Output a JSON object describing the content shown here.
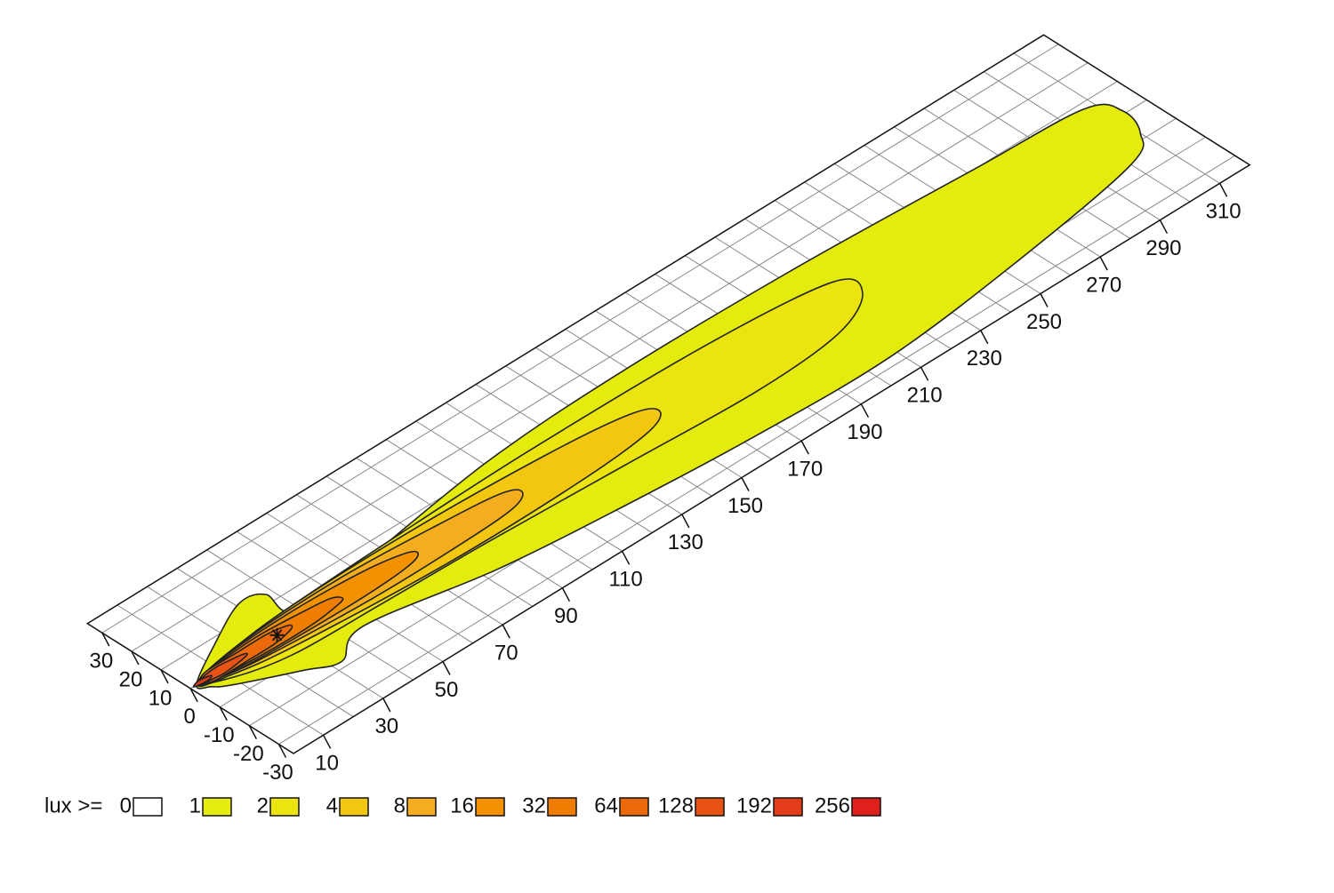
{
  "chart_data": {
    "type": "contour",
    "xlim": [
      0,
      320
    ],
    "ylim": [
      -35,
      35
    ],
    "xticks": [
      10,
      30,
      50,
      70,
      90,
      110,
      130,
      150,
      170,
      190,
      210,
      230,
      250,
      270,
      290,
      310
    ],
    "yticks": [
      30,
      20,
      10,
      0,
      -10,
      -20,
      -30
    ],
    "xgrid": [
      10,
      20,
      30,
      40,
      50,
      60,
      70,
      80,
      90,
      100,
      110,
      120,
      130,
      140,
      150,
      160,
      170,
      180,
      190,
      200,
      210,
      220,
      230,
      240,
      250,
      260,
      270,
      280,
      290,
      300,
      310
    ],
    "ygrid": [
      -30,
      -20,
      -10,
      0,
      10,
      20,
      30
    ],
    "grid": true,
    "legend_label": "lux >=",
    "levels": [
      {
        "value": 0,
        "color": "#ffffff"
      },
      {
        "value": 1,
        "color": "#e3ec0c",
        "x": [
          2,
          16,
          31,
          38,
          38,
          60,
          111,
          158,
          217,
          273,
          307,
          313,
          310,
          300,
          257,
          208,
          164,
          122,
          84,
          46,
          33,
          24,
          8,
          4
        ],
        "y": [
          0,
          8,
          15,
          13,
          4,
          5,
          12,
          14,
          13,
          10,
          8,
          1,
          -8,
          -15,
          -22,
          -27,
          -26,
          -23,
          -19,
          -12,
          -18,
          -14,
          -6,
          -3
        ]
      },
      {
        "value": 2,
        "color": "#ece40e",
        "x": [
          4,
          31,
          77,
          123,
          181,
          218,
          220,
          205,
          176,
          133,
          90,
          55,
          27,
          10
        ],
        "y": [
          1,
          5,
          7,
          8,
          7,
          3,
          -5,
          -12,
          -14,
          -12,
          -10,
          -9,
          -8,
          -4
        ]
      },
      {
        "value": 4,
        "color": "#f3c60f",
        "x": [
          3,
          30,
          77,
          123,
          148,
          154,
          146,
          120,
          77,
          30,
          10
        ],
        "y": [
          0,
          5,
          6,
          4,
          1,
          -3,
          -7,
          -9,
          -9,
          -6,
          -3
        ]
      },
      {
        "value": 8,
        "color": "#f4ad1e",
        "x": [
          3,
          22,
          55,
          87,
          105,
          109,
          103,
          85,
          55,
          22,
          8
        ],
        "y": [
          0,
          4,
          5,
          3,
          1,
          -2,
          -5,
          -6,
          -6,
          -4,
          -2
        ]
      },
      {
        "value": 16,
        "color": "#f29200",
        "x": [
          3,
          15,
          38,
          60,
          72,
          75,
          71,
          58,
          38,
          15,
          6
        ],
        "y": [
          0,
          3,
          4,
          3,
          1,
          -1,
          -3,
          -4,
          -4,
          -3,
          -1
        ]
      },
      {
        "value": 32,
        "color": "#ef7e00",
        "x": [
          3,
          10,
          25,
          40,
          48,
          50,
          47,
          38,
          25,
          10,
          5
        ],
        "y": [
          0,
          2,
          3,
          2,
          1,
          -1,
          -2,
          -3,
          -3,
          -2,
          -1
        ]
      },
      {
        "value": 64,
        "color": "#ec6a0c",
        "x": [
          3,
          7,
          17,
          27,
          33,
          34,
          32,
          26,
          17,
          7,
          4
        ],
        "y": [
          0,
          2,
          2,
          2,
          1,
          0,
          -1,
          -2,
          -2,
          -2,
          -1
        ]
      },
      {
        "value": 128,
        "color": "#e85314",
        "x": [
          2,
          5,
          10,
          15,
          18,
          19,
          18,
          15,
          10,
          5,
          3
        ],
        "y": [
          0,
          1,
          1.5,
          1,
          0.5,
          0,
          -0.5,
          -1,
          -1.5,
          -1,
          -0.5
        ]
      },
      {
        "value": 192,
        "color": "#e43b18",
        "x": [
          1,
          3,
          5,
          7,
          6,
          4,
          2
        ],
        "y": [
          0,
          0.7,
          0.6,
          0,
          -0.6,
          -0.7,
          -0.4
        ]
      },
      {
        "value": 256,
        "color": "#e0201c"
      }
    ],
    "source": {
      "x": 29,
      "y": 0
    }
  }
}
